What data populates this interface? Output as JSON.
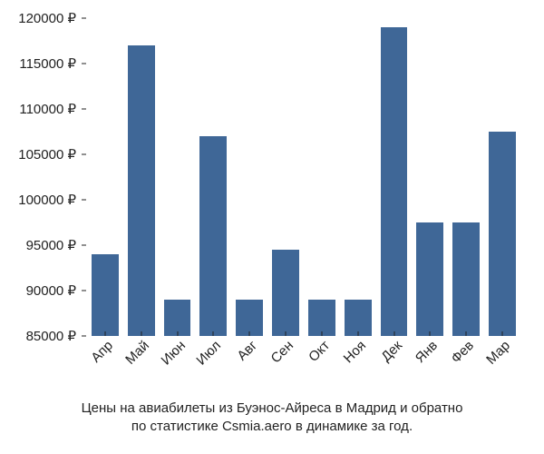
{
  "chart": {
    "type": "bar",
    "background_color": "#ffffff",
    "bar_color": "#3f6797",
    "text_color": "#222222",
    "font_family": "Arial, Helvetica, sans-serif",
    "label_fontsize": 15,
    "caption_fontsize": 15,
    "currency_symbol": "₽",
    "bar_width_ratio": 0.78,
    "ylim": [
      85000,
      120000
    ],
    "ytick_step": 5000,
    "y_ticks": [
      85000,
      90000,
      95000,
      100000,
      105000,
      110000,
      115000,
      120000
    ],
    "months": [
      "Апр",
      "Май",
      "Июн",
      "Июл",
      "Авг",
      "Сен",
      "Окт",
      "Ноя",
      "Дек",
      "Янв",
      "Фев",
      "Мар"
    ],
    "values": [
      94000,
      117000,
      89000,
      107000,
      89000,
      94500,
      89000,
      89000,
      119000,
      97500,
      97500,
      107500
    ],
    "caption_line1": "Цены на авиабилеты из Буэнос-Айреса в Мадрид и обратно",
    "caption_line2": "по статистике Csmia.aero в динамике за год."
  }
}
